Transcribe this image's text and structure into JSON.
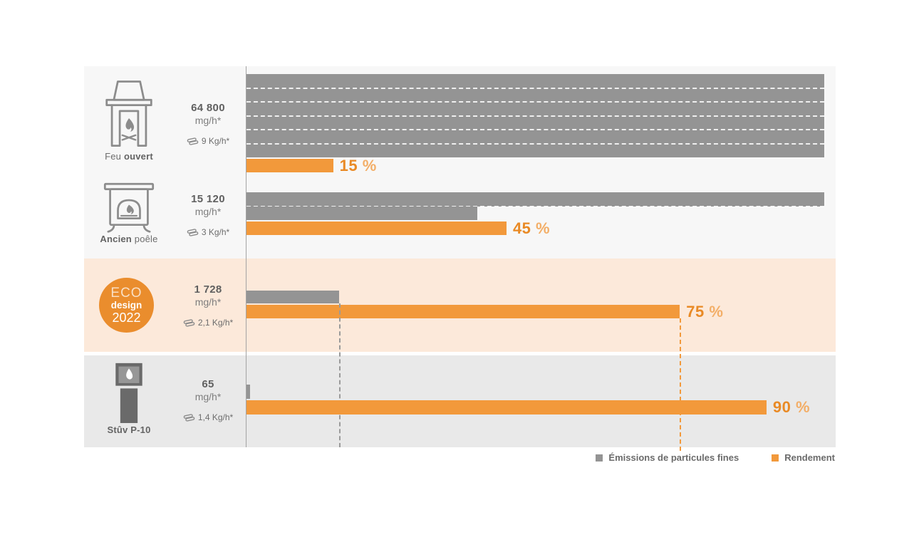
{
  "colors": {
    "emissions_bar": "#949494",
    "rendement_bar": "#F2993B",
    "pct_number": "#E98A25",
    "pct_sign": "#F3AE67",
    "section_top_bg": "#F7F7F7",
    "section_eco_bg": "#FCE9DA",
    "section_stuv_bg": "#E9E9E9",
    "badge_bg": "#EA8D2D",
    "text_gray": "#6D6D6D"
  },
  "legend": {
    "items": [
      {
        "label": "Émissions de particules fines",
        "color": "#949494"
      },
      {
        "label": "Rendement",
        "color": "#F2993B"
      }
    ]
  },
  "chart_data": {
    "type": "bar",
    "orientation": "horizontal",
    "title": "",
    "categories": [
      "Feu ouvert",
      "Ancien poêle",
      "ECO design 2022",
      "Stûv P-10"
    ],
    "series": [
      {
        "name": "Émissions de particules fines",
        "unit": "mg/h",
        "values": [
          64800,
          15120,
          1728,
          65
        ]
      },
      {
        "name": "Rendement",
        "unit": "%",
        "values": [
          15,
          45,
          75,
          90
        ]
      }
    ],
    "axis_note": "gray emission bars wrap: one full row width = 10800 mg/h; orange bars: full row width = 100 %",
    "gray_full_row_mg_h": 10800,
    "legend_position": "bottom-right",
    "grid": false,
    "rows": [
      {
        "name_light": "Feu",
        "name_strong": "ouvert",
        "emissions_label": "64 800",
        "emissions_value": 64800,
        "unit": "mg/h*",
        "wood": "9 Kg/h*",
        "rendement_pct": 15,
        "pct_label": "15",
        "pct_sign": "%"
      },
      {
        "name_strong": "Ancien",
        "name_light": "poêle",
        "emissions_label": "15 120",
        "emissions_value": 15120,
        "unit": "mg/h*",
        "wood": "3 Kg/h*",
        "rendement_pct": 45,
        "pct_label": "45",
        "pct_sign": "%"
      },
      {
        "badge": {
          "line1": "ECO",
          "line2": "design",
          "line3": "2022"
        },
        "emissions_label": "1 728",
        "emissions_value": 1728,
        "unit": "mg/h*",
        "wood": "2,1 Kg/h*",
        "rendement_pct": 75,
        "pct_label": "75",
        "pct_sign": "%"
      },
      {
        "name_strong": "Stûv P-10",
        "emissions_label": "65",
        "emissions_value": 65,
        "unit": "mg/h*",
        "wood": "1,4 Kg/h*",
        "rendement_pct": 90,
        "pct_label": "90",
        "pct_sign": "%"
      }
    ]
  }
}
